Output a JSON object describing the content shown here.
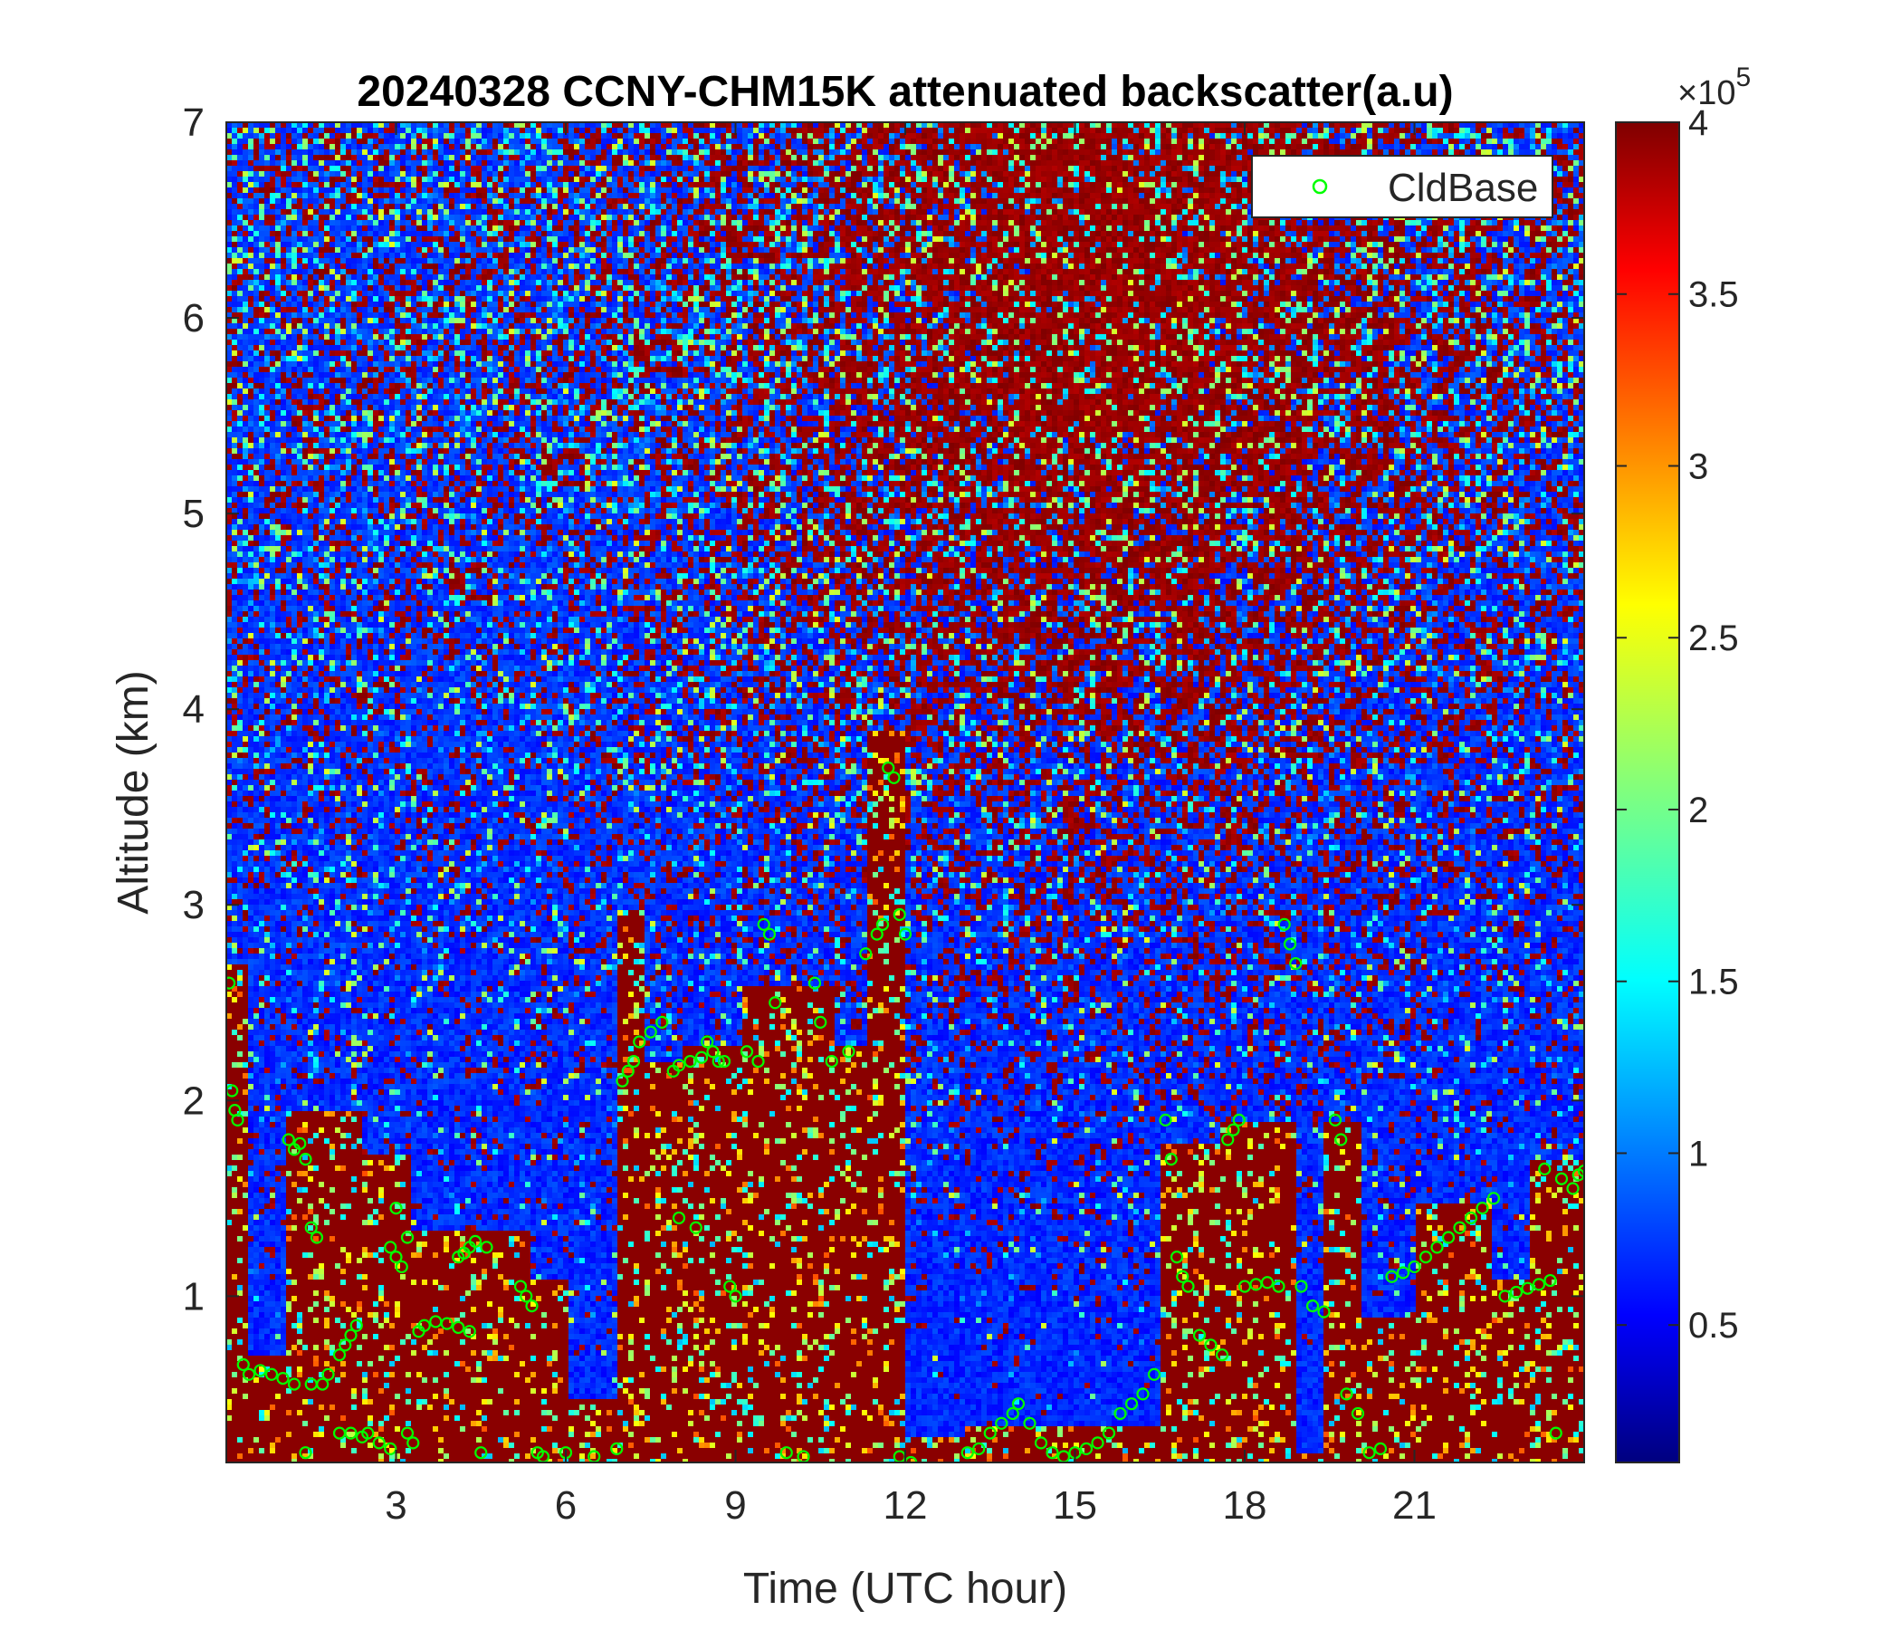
{
  "chart_data": {
    "type": "heatmap",
    "title": "20240328 CCNY-CHM15K attenuated backscatter(a.u)",
    "xlabel": "Time (UTC hour)",
    "ylabel": "Altitude (km)",
    "xlim": [
      0,
      24
    ],
    "ylim": [
      0.15,
      7
    ],
    "xticks": [
      3,
      6,
      9,
      12,
      15,
      18,
      21
    ],
    "yticks": [
      1,
      2,
      3,
      4,
      5,
      6,
      7
    ],
    "colorbar": {
      "colormap": "jet",
      "clim": [
        0.1,
        4
      ],
      "ticks": [
        0.5,
        1,
        1.5,
        2,
        2.5,
        3,
        3.5,
        4
      ],
      "exponent_label": "×10",
      "exponent": "5"
    },
    "legend": {
      "location": "top-right",
      "entries": [
        "CldBase"
      ]
    },
    "cloud_base_series": {
      "name": "CldBase",
      "color": "#00ff00",
      "x": [
        0.05,
        0.1,
        0.15,
        0.2,
        0.3,
        0.4,
        0.6,
        0.8,
        1.0,
        1.2,
        1.4,
        1.1,
        1.2,
        1.3,
        1.4,
        1.5,
        1.6,
        1.7,
        1.5,
        1.8,
        2.0,
        2.2,
        2.4,
        2.0,
        2.1,
        2.2,
        2.3,
        2.5,
        2.7,
        2.9,
        3.0,
        3.2,
        2.9,
        3.0,
        3.1,
        3.2,
        3.3,
        3.4,
        3.5,
        3.7,
        3.9,
        4.1,
        4.3,
        4.1,
        4.2,
        4.3,
        4.4,
        4.6,
        4.5,
        5.2,
        5.3,
        5.4,
        5.5,
        5.6,
        6.0,
        6.5,
        6.9,
        7.0,
        7.1,
        7.2,
        7.3,
        7.5,
        7.7,
        7.9,
        8.0,
        8.2,
        8.4,
        8.0,
        8.3,
        8.5,
        8.6,
        8.7,
        8.8,
        8.9,
        9.0,
        9.2,
        9.4,
        9.5,
        9.6,
        9.7,
        9.9,
        10.2,
        10.4,
        10.5,
        10.7,
        11.0,
        11.3,
        11.5,
        11.6,
        11.7,
        11.8,
        11.9,
        12.0,
        12.1,
        11.9,
        13.1,
        13.3,
        13.5,
        13.7,
        13.9,
        14.0,
        14.2,
        14.4,
        14.6,
        14.8,
        15.0,
        15.2,
        15.4,
        15.6,
        15.8,
        16.0,
        16.2,
        16.4,
        16.6,
        16.7,
        16.8,
        16.9,
        17.0,
        17.2,
        17.4,
        17.6,
        17.7,
        17.8,
        17.9,
        18.0,
        18.2,
        18.4,
        18.6,
        18.7,
        18.8,
        18.9,
        19.0,
        19.2,
        19.4,
        19.6,
        19.7,
        19.8,
        20.0,
        20.2,
        20.4,
        20.6,
        20.8,
        21.0,
        21.2,
        21.4,
        21.6,
        21.8,
        22.0,
        22.2,
        22.4,
        22.6,
        22.8,
        23.0,
        23.2,
        23.4,
        23.6,
        23.8,
        23.9,
        24.0,
        23.3,
        23.5
      ],
      "y": [
        2.6,
        2.05,
        1.95,
        1.9,
        0.65,
        0.6,
        0.62,
        0.6,
        0.58,
        0.55,
        0.2,
        1.8,
        1.75,
        1.78,
        1.7,
        1.35,
        1.3,
        0.55,
        0.55,
        0.6,
        0.3,
        0.3,
        0.28,
        0.7,
        0.75,
        0.8,
        0.85,
        0.3,
        0.25,
        0.22,
        1.45,
        1.3,
        1.25,
        1.2,
        1.15,
        0.3,
        0.25,
        0.82,
        0.85,
        0.87,
        0.86,
        0.84,
        0.82,
        1.2,
        1.22,
        1.25,
        1.28,
        1.25,
        0.2,
        1.05,
        1.0,
        0.95,
        0.2,
        0.18,
        0.2,
        0.18,
        0.22,
        2.1,
        2.15,
        2.2,
        2.3,
        2.35,
        2.4,
        2.15,
        2.18,
        2.2,
        2.22,
        1.4,
        1.35,
        2.3,
        2.25,
        2.2,
        2.2,
        1.05,
        1.0,
        2.25,
        2.2,
        2.9,
        2.85,
        2.5,
        0.2,
        0.18,
        2.6,
        2.4,
        2.2,
        2.25,
        2.75,
        2.85,
        2.9,
        3.7,
        3.65,
        2.95,
        2.85,
        0.15,
        0.18,
        0.2,
        0.22,
        0.3,
        0.35,
        0.4,
        0.45,
        0.35,
        0.25,
        0.2,
        0.18,
        0.2,
        0.22,
        0.25,
        0.3,
        0.4,
        0.45,
        0.5,
        0.6,
        1.9,
        1.7,
        1.2,
        1.1,
        1.05,
        0.8,
        0.75,
        0.7,
        1.8,
        1.85,
        1.9,
        1.05,
        1.06,
        1.07,
        1.05,
        2.9,
        2.8,
        2.7,
        1.05,
        0.95,
        0.92,
        1.9,
        1.8,
        0.5,
        0.4,
        0.2,
        0.22,
        1.1,
        1.12,
        1.15,
        1.2,
        1.25,
        1.3,
        1.35,
        1.4,
        1.45,
        1.5,
        1.0,
        1.02,
        1.04,
        1.06,
        1.08,
        1.6,
        1.55,
        1.62,
        1.64,
        1.65,
        0.3,
        0.25
      ]
    }
  }
}
